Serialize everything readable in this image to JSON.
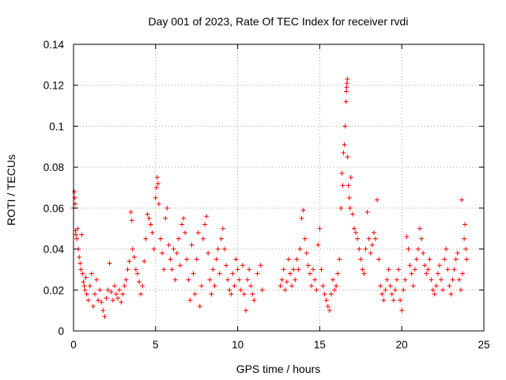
{
  "chart_data": {
    "type": "scatter",
    "title": "Day 001 of 2023, Rate Of TEC Index for receiver rvdi",
    "xlabel": "GPS time / hours",
    "ylabel": "ROTI / TECUs",
    "xlim": [
      0,
      25
    ],
    "ylim": [
      0,
      0.14
    ],
    "xticks": [
      "0",
      "5",
      "10",
      "15",
      "20",
      "25"
    ],
    "yticks": [
      "0",
      "0.02",
      "0.04",
      "0.06",
      "0.08",
      "0.1",
      "0.12",
      "0.14"
    ],
    "grid": true,
    "marker": "plus",
    "color": "#ff0000",
    "series": [
      {
        "values": [
          [
            0.0,
            0.06
          ],
          [
            0.05,
            0.068
          ],
          [
            0.08,
            0.065
          ],
          [
            0.1,
            0.062
          ],
          [
            0.12,
            0.049
          ],
          [
            0.15,
            0.047
          ],
          [
            0.2,
            0.045
          ],
          [
            0.25,
            0.05
          ],
          [
            0.3,
            0.04
          ],
          [
            0.35,
            0.036
          ],
          [
            0.4,
            0.033
          ],
          [
            0.45,
            0.03
          ],
          [
            0.5,
            0.047
          ],
          [
            0.55,
            0.028
          ],
          [
            0.6,
            0.024
          ],
          [
            0.65,
            0.022
          ],
          [
            0.7,
            0.02
          ],
          [
            0.75,
            0.026
          ],
          [
            0.8,
            0.018
          ],
          [
            0.9,
            0.015
          ],
          [
            1.0,
            0.022
          ],
          [
            1.1,
            0.028
          ],
          [
            1.2,
            0.012
          ],
          [
            1.3,
            0.018
          ],
          [
            1.4,
            0.025
          ],
          [
            1.5,
            0.015
          ],
          [
            1.6,
            0.02
          ],
          [
            1.7,
            0.014
          ],
          [
            1.8,
            0.01
          ],
          [
            1.9,
            0.007
          ],
          [
            2.0,
            0.016
          ],
          [
            2.1,
            0.02
          ],
          [
            2.2,
            0.033
          ],
          [
            2.3,
            0.019
          ],
          [
            2.4,
            0.015
          ],
          [
            2.5,
            0.022
          ],
          [
            2.6,
            0.018
          ],
          [
            2.7,
            0.016
          ],
          [
            2.8,
            0.02
          ],
          [
            2.9,
            0.014
          ],
          [
            3.0,
            0.018
          ],
          [
            3.1,
            0.022
          ],
          [
            3.2,
            0.025
          ],
          [
            3.3,
            0.03
          ],
          [
            3.4,
            0.034
          ],
          [
            3.5,
            0.058
          ],
          [
            3.55,
            0.054
          ],
          [
            3.6,
            0.04
          ],
          [
            3.7,
            0.036
          ],
          [
            3.8,
            0.03
          ],
          [
            3.9,
            0.028
          ],
          [
            4.0,
            0.024
          ],
          [
            4.1,
            0.018
          ],
          [
            4.2,
            0.022
          ],
          [
            4.3,
            0.034
          ],
          [
            4.4,
            0.045
          ],
          [
            4.5,
            0.057
          ],
          [
            4.6,
            0.055
          ],
          [
            4.7,
            0.052
          ],
          [
            4.8,
            0.048
          ],
          [
            4.9,
            0.04
          ],
          [
            5.0,
            0.065
          ],
          [
            5.05,
            0.07
          ],
          [
            5.1,
            0.075
          ],
          [
            5.15,
            0.072
          ],
          [
            5.2,
            0.062
          ],
          [
            5.3,
            0.045
          ],
          [
            5.4,
            0.038
          ],
          [
            5.5,
            0.03
          ],
          [
            5.6,
            0.055
          ],
          [
            5.7,
            0.06
          ],
          [
            5.8,
            0.042
          ],
          [
            5.9,
            0.035
          ],
          [
            6.0,
            0.03
          ],
          [
            6.1,
            0.04
          ],
          [
            6.2,
            0.025
          ],
          [
            6.3,
            0.038
          ],
          [
            6.4,
            0.045
          ],
          [
            6.5,
            0.032
          ],
          [
            6.6,
            0.052
          ],
          [
            6.7,
            0.055
          ],
          [
            6.8,
            0.048
          ],
          [
            6.9,
            0.035
          ],
          [
            7.0,
            0.025
          ],
          [
            7.1,
            0.015
          ],
          [
            7.2,
            0.042
          ],
          [
            7.3,
            0.028
          ],
          [
            7.4,
            0.018
          ],
          [
            7.5,
            0.035
          ],
          [
            7.6,
            0.048
          ],
          [
            7.7,
            0.012
          ],
          [
            7.8,
            0.022
          ],
          [
            7.9,
            0.045
          ],
          [
            8.0,
            0.052
          ],
          [
            8.1,
            0.056
          ],
          [
            8.2,
            0.038
          ],
          [
            8.3,
            0.025
          ],
          [
            8.4,
            0.018
          ],
          [
            8.5,
            0.03
          ],
          [
            8.6,
            0.022
          ],
          [
            8.7,
            0.035
          ],
          [
            8.8,
            0.04
          ],
          [
            8.9,
            0.028
          ],
          [
            9.0,
            0.045
          ],
          [
            9.1,
            0.05
          ],
          [
            9.2,
            0.04
          ],
          [
            9.3,
            0.032
          ],
          [
            9.4,
            0.025
          ],
          [
            9.5,
            0.02
          ],
          [
            9.6,
            0.018
          ],
          [
            9.7,
            0.028
          ],
          [
            9.8,
            0.022
          ],
          [
            9.9,
            0.035
          ],
          [
            10.0,
            0.03
          ],
          [
            10.1,
            0.025
          ],
          [
            10.2,
            0.02
          ],
          [
            10.3,
            0.032
          ],
          [
            10.4,
            0.018
          ],
          [
            10.5,
            0.01
          ],
          [
            10.6,
            0.025
          ],
          [
            10.7,
            0.03
          ],
          [
            10.8,
            0.022
          ],
          [
            10.9,
            0.018
          ],
          [
            11.0,
            0.015
          ],
          [
            11.2,
            0.028
          ],
          [
            11.4,
            0.032
          ],
          [
            11.5,
            0.02
          ],
          [
            12.6,
            0.022
          ],
          [
            12.7,
            0.025
          ],
          [
            12.8,
            0.03
          ],
          [
            12.9,
            0.02
          ],
          [
            13.0,
            0.024
          ],
          [
            13.1,
            0.035
          ],
          [
            13.2,
            0.028
          ],
          [
            13.3,
            0.022
          ],
          [
            13.4,
            0.03
          ],
          [
            13.5,
            0.025
          ],
          [
            13.6,
            0.035
          ],
          [
            13.7,
            0.03
          ],
          [
            13.8,
            0.04
          ],
          [
            13.9,
            0.055
          ],
          [
            14.0,
            0.059
          ],
          [
            14.1,
            0.045
          ],
          [
            14.2,
            0.038
          ],
          [
            14.3,
            0.032
          ],
          [
            14.4,
            0.028
          ],
          [
            14.5,
            0.022
          ],
          [
            14.6,
            0.03
          ],
          [
            14.7,
            0.025
          ],
          [
            14.8,
            0.02
          ],
          [
            14.9,
            0.042
          ],
          [
            15.0,
            0.05
          ],
          [
            15.1,
            0.03
          ],
          [
            15.2,
            0.022
          ],
          [
            15.3,
            0.018
          ],
          [
            15.4,
            0.015
          ],
          [
            15.5,
            0.012
          ],
          [
            15.6,
            0.01
          ],
          [
            15.7,
            0.018
          ],
          [
            15.8,
            0.025
          ],
          [
            15.9,
            0.02
          ],
          [
            16.0,
            0.022
          ],
          [
            16.1,
            0.028
          ],
          [
            16.2,
            0.035
          ],
          [
            16.3,
            0.06
          ],
          [
            16.35,
            0.077
          ],
          [
            16.4,
            0.071
          ],
          [
            16.45,
            0.087
          ],
          [
            16.5,
            0.091
          ],
          [
            16.55,
            0.1
          ],
          [
            16.6,
            0.112
          ],
          [
            16.62,
            0.117
          ],
          [
            16.64,
            0.119
          ],
          [
            16.66,
            0.121
          ],
          [
            16.68,
            0.123
          ],
          [
            16.7,
            0.085
          ],
          [
            16.75,
            0.071
          ],
          [
            16.8,
            0.065
          ],
          [
            16.85,
            0.06
          ],
          [
            16.9,
            0.075
          ],
          [
            17.0,
            0.057
          ],
          [
            17.1,
            0.05
          ],
          [
            17.2,
            0.048
          ],
          [
            17.3,
            0.045
          ],
          [
            17.4,
            0.04
          ],
          [
            17.5,
            0.035
          ],
          [
            17.6,
            0.03
          ],
          [
            17.7,
            0.028
          ],
          [
            17.8,
            0.04
          ],
          [
            17.9,
            0.058
          ],
          [
            18.0,
            0.045
          ],
          [
            18.1,
            0.038
          ],
          [
            18.2,
            0.042
          ],
          [
            18.3,
            0.048
          ],
          [
            18.4,
            0.045
          ],
          [
            18.5,
            0.064
          ],
          [
            18.6,
            0.035
          ],
          [
            18.7,
            0.022
          ],
          [
            18.8,
            0.018
          ],
          [
            18.9,
            0.015
          ],
          [
            19.0,
            0.02
          ],
          [
            19.1,
            0.025
          ],
          [
            19.2,
            0.03
          ],
          [
            19.3,
            0.022
          ],
          [
            19.4,
            0.018
          ],
          [
            19.5,
            0.015
          ],
          [
            19.6,
            0.02
          ],
          [
            19.7,
            0.025
          ],
          [
            19.8,
            0.03
          ],
          [
            19.9,
            0.015
          ],
          [
            20.0,
            0.01
          ],
          [
            20.1,
            0.02
          ],
          [
            20.2,
            0.025
          ],
          [
            20.3,
            0.046
          ],
          [
            20.4,
            0.04
          ],
          [
            20.5,
            0.032
          ],
          [
            20.6,
            0.028
          ],
          [
            20.7,
            0.022
          ],
          [
            20.8,
            0.03
          ],
          [
            20.9,
            0.035
          ],
          [
            21.0,
            0.04
          ],
          [
            21.1,
            0.05
          ],
          [
            21.2,
            0.045
          ],
          [
            21.3,
            0.038
          ],
          [
            21.4,
            0.032
          ],
          [
            21.5,
            0.028
          ],
          [
            21.6,
            0.03
          ],
          [
            21.7,
            0.035
          ],
          [
            21.8,
            0.025
          ],
          [
            21.9,
            0.02
          ],
          [
            22.0,
            0.018
          ],
          [
            22.1,
            0.022
          ],
          [
            22.2,
            0.028
          ],
          [
            22.3,
            0.032
          ],
          [
            22.4,
            0.025
          ],
          [
            22.5,
            0.02
          ],
          [
            22.6,
            0.035
          ],
          [
            22.7,
            0.04
          ],
          [
            22.8,
            0.03
          ],
          [
            22.9,
            0.022
          ],
          [
            23.0,
            0.018
          ],
          [
            23.1,
            0.025
          ],
          [
            23.2,
            0.03
          ],
          [
            23.3,
            0.035
          ],
          [
            23.4,
            0.038
          ],
          [
            23.5,
            0.025
          ],
          [
            23.6,
            0.02
          ],
          [
            23.65,
            0.064
          ],
          [
            23.7,
            0.028
          ],
          [
            23.8,
            0.045
          ],
          [
            23.85,
            0.052
          ],
          [
            23.9,
            0.04
          ],
          [
            23.95,
            0.035
          ]
        ]
      }
    ]
  }
}
